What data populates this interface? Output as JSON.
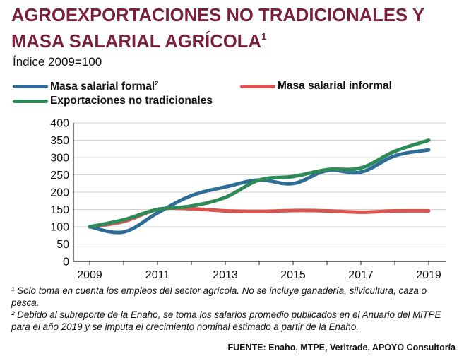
{
  "title": {
    "line1": "AGROEXPORTACIONES NO TRADICIONALES Y",
    "line2": "MASA SALARIAL AGRÍCOLA",
    "sup": "1"
  },
  "subtitle": "Índice 2009=100",
  "chart_data": {
    "type": "line",
    "x": [
      2009,
      2010,
      2011,
      2012,
      2013,
      2014,
      2015,
      2016,
      2017,
      2018,
      2019
    ],
    "xticks": [
      "2009",
      "2011",
      "2013",
      "2015",
      "2017",
      "2019"
    ],
    "yticks": [
      "0",
      "50",
      "100",
      "150",
      "200",
      "250",
      "300",
      "350",
      "400"
    ],
    "ylim": [
      0,
      400
    ],
    "xlim": [
      2009,
      2019
    ],
    "grid": true,
    "legend_position": "top",
    "series": [
      {
        "name": "Masa salarial formal",
        "sup": "2",
        "color": "#2e6e96",
        "values": [
          100,
          85,
          140,
          190,
          215,
          235,
          225,
          262,
          258,
          305,
          322
        ]
      },
      {
        "name": "Masa salarial informal",
        "sup": "",
        "color": "#d9534f",
        "values": [
          100,
          115,
          150,
          152,
          146,
          144,
          147,
          146,
          142,
          146,
          146
        ]
      },
      {
        "name": "Exportaciones no tradicionales",
        "sup": "",
        "color": "#2e8b57",
        "values": [
          100,
          120,
          150,
          160,
          185,
          235,
          245,
          265,
          270,
          318,
          350
        ]
      }
    ]
  },
  "notes": {
    "note1": "¹ Solo toma en cuenta los empleos del sector agrícola. No se incluye ganadería, silvicultura, caza o pesca.",
    "note2": "² Debido al subreporte de la Enaho, se toma los salarios promedio publicados en el Anuario del MiTPE para el año 2019 y se imputa el crecimiento nominal estimado a partir de la Enaho."
  },
  "source": "FUENTE: Enaho, MTPE, Veritrade, APOYO Consultoría"
}
